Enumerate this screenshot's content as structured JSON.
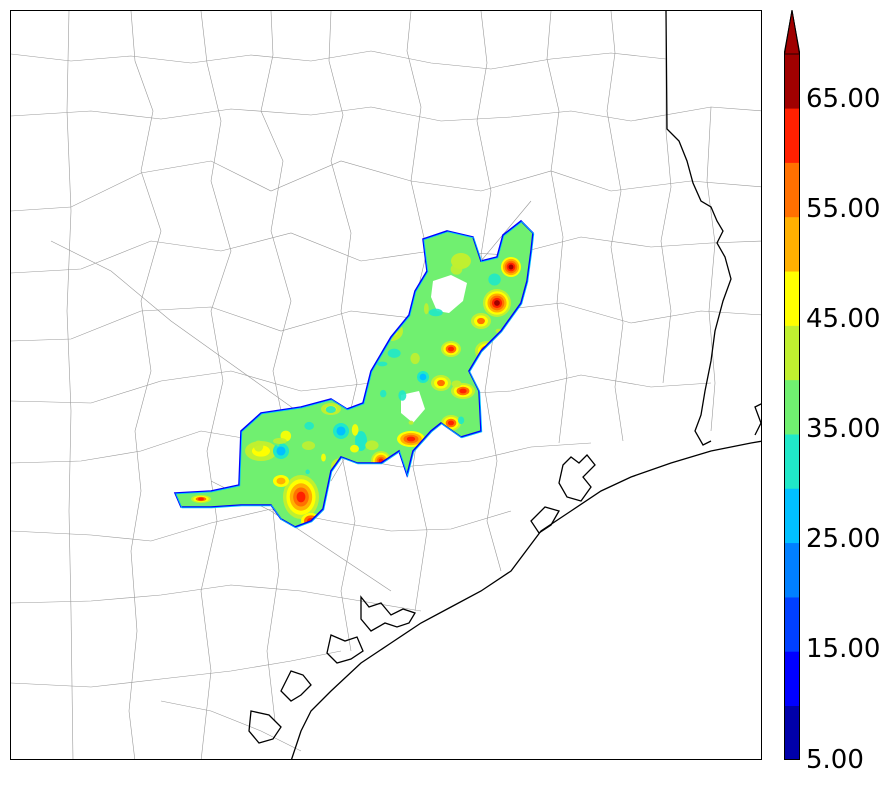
{
  "colorbar": {
    "levels": [
      5,
      10,
      15,
      20,
      25,
      30,
      35,
      40,
      45,
      50,
      55,
      60,
      65,
      70
    ],
    "colors": [
      "#0000aa",
      "#0000ff",
      "#0040ff",
      "#0080ff",
      "#00c0ff",
      "#20e8c8",
      "#70f070",
      "#c0f030",
      "#ffff00",
      "#ffb000",
      "#ff7000",
      "#ff2000",
      "#a00000"
    ],
    "extend": "max",
    "labels": [
      "65.00",
      "55.00",
      "45.00",
      "35.00",
      "25.00",
      "15.00",
      "5.00"
    ]
  },
  "map": {
    "coastline_color": "#000000",
    "county_line_color": "#999999",
    "field_outline_color": "#0000ff"
  }
}
